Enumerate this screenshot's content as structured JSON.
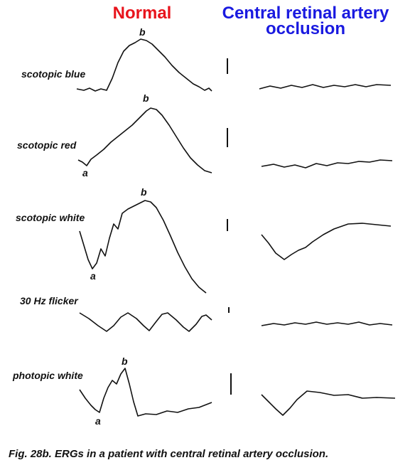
{
  "headers": {
    "normal": "Normal",
    "occlusion": [
      "Central retinal artery",
      "occlusion"
    ]
  },
  "rows": [
    {
      "label": "scotopic blue",
      "peaks": [
        "b"
      ]
    },
    {
      "label": "scotopic red",
      "peaks": [
        "b",
        "a"
      ]
    },
    {
      "label": "scotopic white",
      "peaks": [
        "b",
        "a"
      ]
    },
    {
      "label": "30 Hz flicker",
      "peaks": []
    },
    {
      "label": "photopic white",
      "peaks": [
        "b",
        "a"
      ]
    }
  ],
  "caption": "Fig. 28b. ERGs in a patient with central retinal artery occlusion."
}
